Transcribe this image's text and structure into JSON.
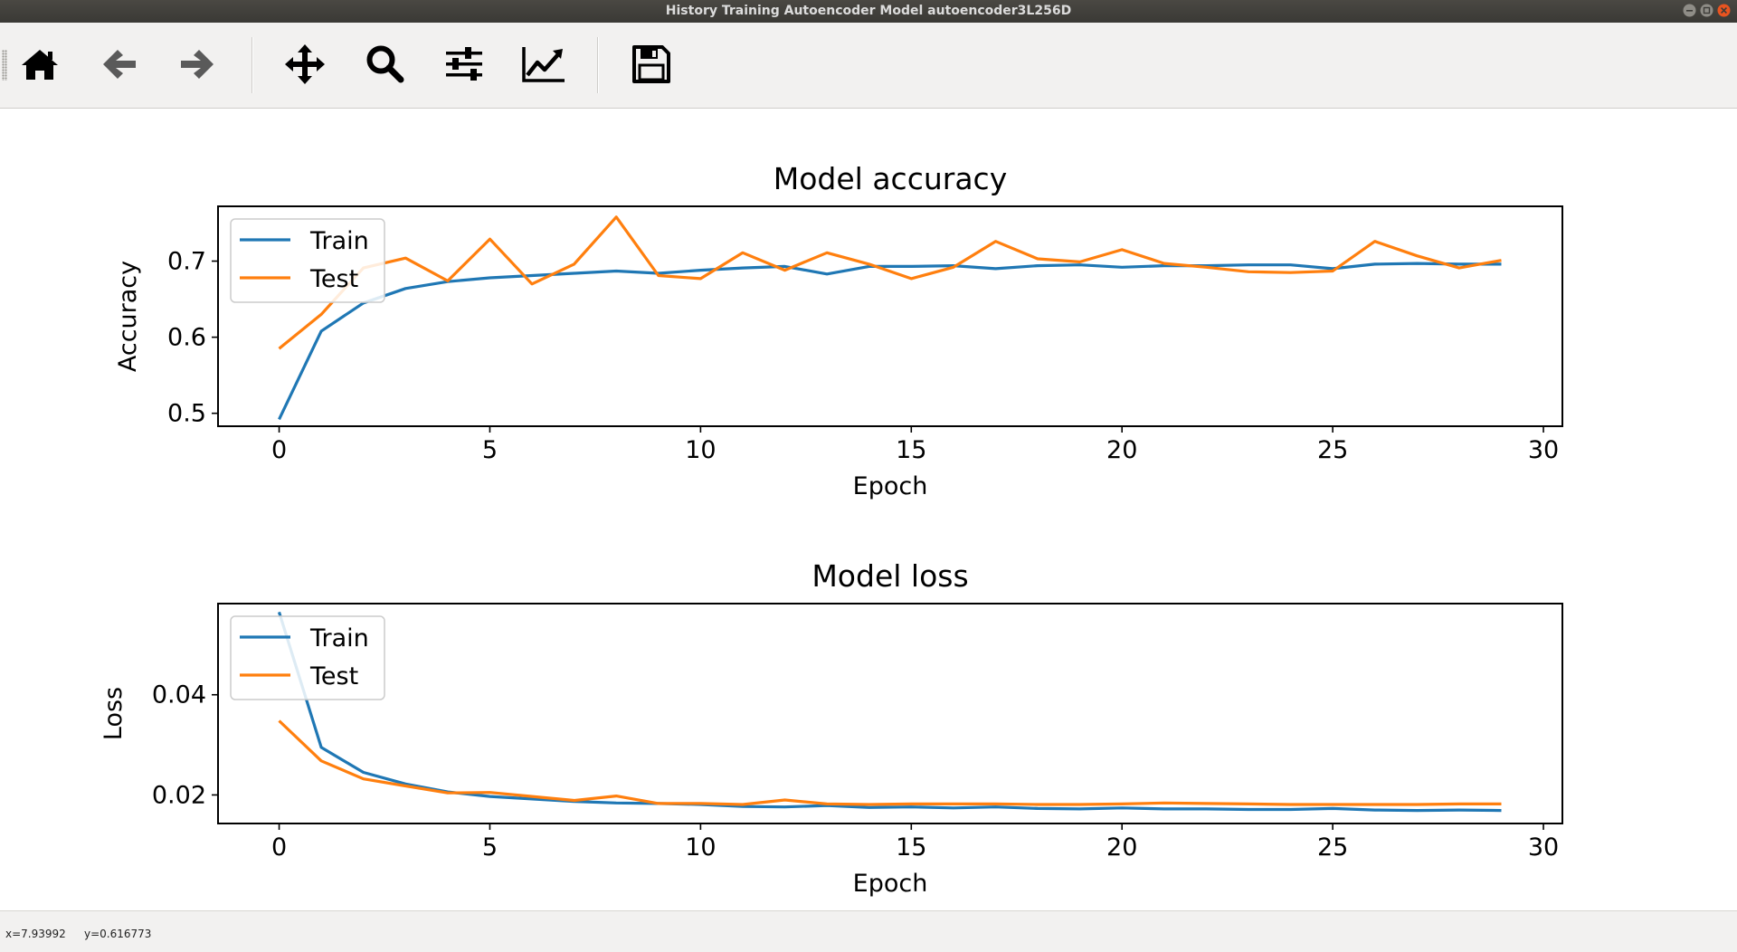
{
  "window": {
    "title": "History Training Autoencoder Model autoencoder3L256D"
  },
  "toolbar": {
    "buttons": [
      {
        "name": "home",
        "icon": "home-icon"
      },
      {
        "name": "back",
        "icon": "arrow-left-icon"
      },
      {
        "name": "forward",
        "icon": "arrow-right-icon"
      },
      {
        "name": "pan",
        "icon": "move-icon"
      },
      {
        "name": "zoom",
        "icon": "magnifier-icon"
      },
      {
        "name": "subplots",
        "icon": "sliders-icon"
      },
      {
        "name": "customize",
        "icon": "line-chart-icon"
      },
      {
        "name": "save",
        "icon": "floppy-disk-icon"
      }
    ]
  },
  "status": {
    "x_text": "x=7.93992",
    "y_text": "y=0.616773"
  },
  "colors": {
    "train": "#1f77b4",
    "test": "#ff7f0e",
    "toolbar_bg": "#f2f1f0",
    "titlebar_bg": "#3c3b37",
    "close_button": "#e95420"
  },
  "chart_data": [
    {
      "type": "line",
      "title": "Model accuracy",
      "xlabel": "Epoch",
      "ylabel": "Accuracy",
      "xlim": [
        -1.45,
        30.45
      ],
      "ylim": [
        0.483,
        0.772
      ],
      "xticks": [
        0,
        5,
        10,
        15,
        20,
        25,
        30
      ],
      "yticks": [
        0.5,
        0.6,
        0.7
      ],
      "ytick_labels": [
        "0.5",
        "0.6",
        "0.7"
      ],
      "legend": "upper left",
      "grid": false,
      "x": [
        0,
        1,
        2,
        3,
        4,
        5,
        6,
        7,
        8,
        9,
        10,
        11,
        12,
        13,
        14,
        15,
        16,
        17,
        18,
        19,
        20,
        21,
        22,
        23,
        24,
        25,
        26,
        27,
        28,
        29
      ],
      "series": [
        {
          "name": "Train",
          "color": "#1f77b4",
          "values": [
            0.492,
            0.608,
            0.645,
            0.664,
            0.673,
            0.678,
            0.681,
            0.684,
            0.687,
            0.684,
            0.688,
            0.691,
            0.693,
            0.683,
            0.693,
            0.693,
            0.694,
            0.69,
            0.694,
            0.695,
            0.692,
            0.694,
            0.694,
            0.695,
            0.695,
            0.69,
            0.696,
            0.697,
            0.696,
            0.696
          ]
        },
        {
          "name": "Test",
          "color": "#ff7f0e",
          "values": [
            0.585,
            0.63,
            0.691,
            0.704,
            0.674,
            0.729,
            0.67,
            0.696,
            0.758,
            0.681,
            0.677,
            0.711,
            0.688,
            0.711,
            0.696,
            0.677,
            0.692,
            0.726,
            0.703,
            0.699,
            0.715,
            0.697,
            0.692,
            0.686,
            0.685,
            0.687,
            0.726,
            0.707,
            0.691,
            0.701
          ]
        }
      ]
    },
    {
      "type": "line",
      "title": "Model loss",
      "xlabel": "Epoch",
      "ylabel": "Loss",
      "xlim": [
        -1.45,
        30.45
      ],
      "ylim": [
        0.0143,
        0.0582
      ],
      "xticks": [
        0,
        5,
        10,
        15,
        20,
        25,
        30
      ],
      "yticks": [
        0.02,
        0.04
      ],
      "ytick_labels": [
        "0.02",
        "0.04"
      ],
      "legend": "upper left",
      "grid": false,
      "x": [
        0,
        1,
        2,
        3,
        4,
        5,
        6,
        7,
        8,
        9,
        10,
        11,
        12,
        13,
        14,
        15,
        16,
        17,
        18,
        19,
        20,
        21,
        22,
        23,
        24,
        25,
        26,
        27,
        28,
        29
      ],
      "series": [
        {
          "name": "Train",
          "color": "#1f77b4",
          "values": [
            0.0565,
            0.0295,
            0.0245,
            0.0222,
            0.0206,
            0.0197,
            0.0192,
            0.0187,
            0.0184,
            0.0183,
            0.0181,
            0.0177,
            0.0176,
            0.0179,
            0.0175,
            0.0176,
            0.0174,
            0.0176,
            0.0173,
            0.0172,
            0.0174,
            0.0172,
            0.0172,
            0.0171,
            0.0171,
            0.0173,
            0.017,
            0.0169,
            0.017,
            0.0169
          ]
        },
        {
          "name": "Test",
          "color": "#ff7f0e",
          "values": [
            0.0348,
            0.0268,
            0.0232,
            0.0218,
            0.0204,
            0.0205,
            0.0197,
            0.0189,
            0.0198,
            0.0183,
            0.0183,
            0.0181,
            0.019,
            0.0182,
            0.0181,
            0.0182,
            0.0182,
            0.0182,
            0.0181,
            0.0181,
            0.0182,
            0.0184,
            0.0183,
            0.0182,
            0.0181,
            0.0181,
            0.0181,
            0.0181,
            0.0182,
            0.0182
          ]
        }
      ]
    }
  ]
}
